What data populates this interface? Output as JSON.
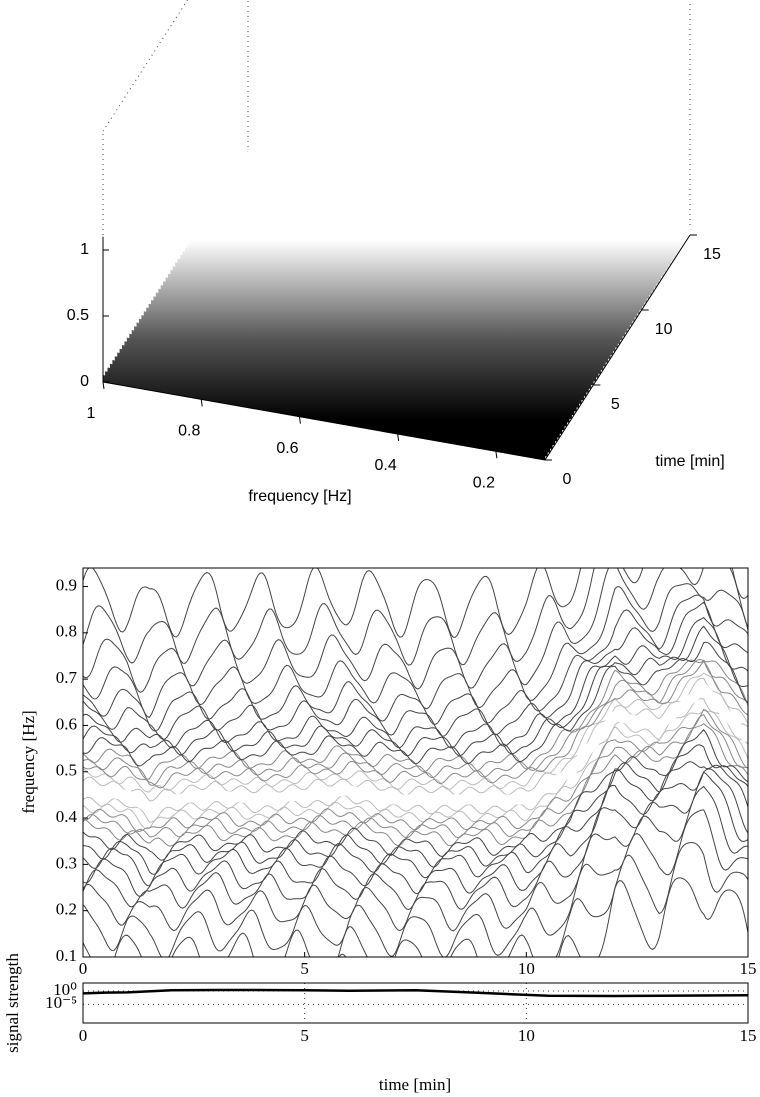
{
  "chart_data": [
    {
      "type": "surface3d",
      "xlabel": "frequency [Hz]",
      "ylabel": "time [min]",
      "xlim": [
        0.1,
        1
      ],
      "ylim": [
        0,
        15
      ],
      "zlim": [
        0,
        1
      ],
      "xticks": [
        1,
        0.8,
        0.6,
        0.4,
        0.2
      ],
      "yticks": [
        0,
        5,
        10,
        15
      ],
      "zticks": [
        0,
        0.5,
        1
      ]
    },
    {
      "type": "contour",
      "ylabel": "frequency [Hz]",
      "x": [
        0,
        1,
        1.5,
        2,
        3,
        4,
        5,
        6,
        7,
        8,
        9,
        10,
        11,
        12,
        13,
        14,
        15
      ],
      "values": [
        0.46,
        0.45,
        0.42,
        0.44,
        0.45,
        0.44,
        0.45,
        0.46,
        0.44,
        0.44,
        0.44,
        0.44,
        0.5,
        0.62,
        0.6,
        0.68,
        0.57
      ],
      "xlim": [
        0,
        15
      ],
      "ylim": [
        0.1,
        0.94
      ],
      "xticks": [
        0,
        5,
        10,
        15
      ],
      "yticks": [
        0.1,
        0.2,
        0.3,
        0.4,
        0.5,
        0.6,
        0.7,
        0.8,
        0.9
      ]
    },
    {
      "type": "line",
      "ylabel": "signal strength",
      "xlabel": "time [min]",
      "color": "#000000",
      "x": [
        0,
        0.5,
        1,
        2,
        3,
        5,
        6,
        7.5,
        8.5,
        9.5,
        10.5,
        12,
        13,
        14,
        15
      ],
      "values": [
        0.13,
        0.25,
        0.32,
        2,
        2.5,
        2,
        1.3,
        2,
        0.4,
        0.08,
        0.016,
        0.013,
        0.016,
        0.02,
        0.025
      ],
      "xlim": [
        0,
        15
      ],
      "ylim": [
        1e-12,
        1000
      ],
      "ylog": true,
      "grid": true,
      "yticks": [
        {
          "value": 1,
          "label": "10⁰"
        },
        {
          "value": 1e-05,
          "label": "10⁻⁵"
        }
      ],
      "xticks": [
        0,
        5,
        10,
        15
      ]
    }
  ]
}
